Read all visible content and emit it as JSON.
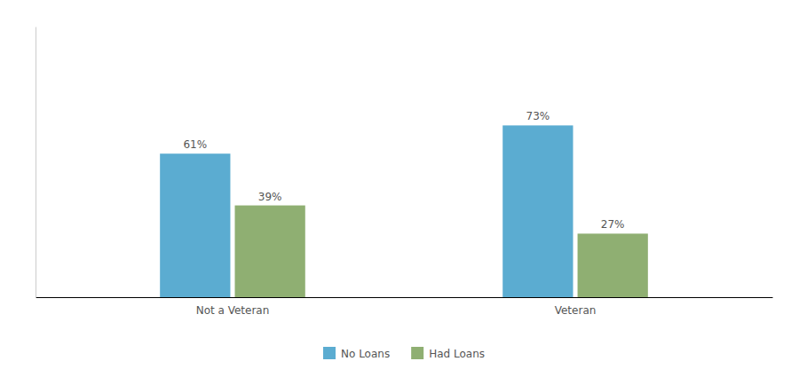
{
  "chart_data": {
    "type": "bar",
    "categories": [
      "Not a Veteran",
      "Veteran"
    ],
    "series": [
      {
        "name": "No Loans",
        "color": "#5BACD1",
        "values": [
          61,
          73
        ],
        "value_labels": [
          "61%",
          "73%"
        ]
      },
      {
        "name": "Had Loans",
        "color": "#8FAF72",
        "values": [
          39,
          27
        ],
        "value_labels": [
          "39%",
          "27%"
        ]
      }
    ],
    "ylim": [
      0,
      115
    ],
    "data_labels": true,
    "tick_labels": "x",
    "legend": "bottom",
    "grid": false
  }
}
